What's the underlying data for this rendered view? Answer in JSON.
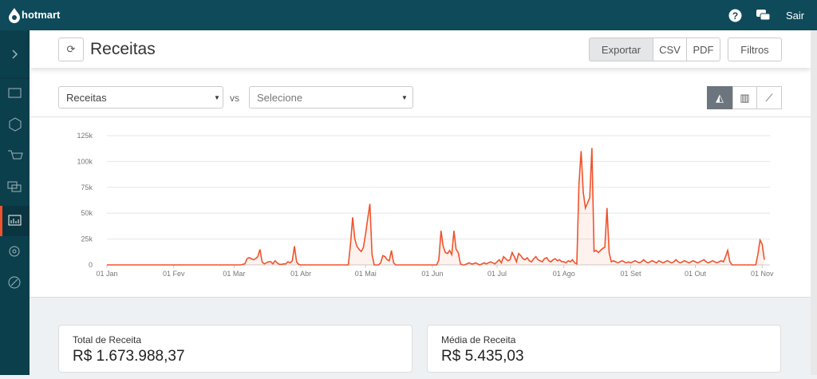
{
  "header": {
    "brand": "hotmart",
    "logout": "Sair"
  },
  "toolbar": {
    "title": "Receitas",
    "buttons": [
      "Exportar",
      "CSV",
      "PDF",
      "Filtros"
    ]
  },
  "selectors": {
    "metric": "Receitas",
    "vs": "vs",
    "compare": "Selecione"
  },
  "chart_data": {
    "type": "line",
    "color": "#f0532b",
    "grid": true,
    "ylim": [
      0,
      125000
    ],
    "yticks": [
      0,
      {
        "value": 25000,
        "label": "25k"
      },
      {
        "value": 50000,
        "label": "50k"
      },
      {
        "value": 75000,
        "label": "75k"
      },
      {
        "value": 100000,
        "label": "100k"
      },
      {
        "value": 125000,
        "label": "125k"
      }
    ],
    "categories": [
      "01 Jan",
      null,
      null,
      null,
      null,
      null,
      null,
      null,
      null,
      null,
      null,
      null,
      null,
      null,
      null,
      null,
      null,
      null,
      null,
      null,
      null,
      null,
      null,
      null,
      null,
      null,
      null,
      null,
      null,
      null,
      null,
      "01 Fev",
      null,
      null,
      null,
      null,
      null,
      null,
      null,
      null,
      null,
      null,
      null,
      null,
      null,
      null,
      null,
      null,
      null,
      null,
      null,
      null,
      null,
      null,
      null,
      null,
      null,
      null,
      null,
      "01 Mar",
      null,
      null,
      null,
      null,
      null,
      null,
      null,
      null,
      null,
      null,
      null,
      null,
      null,
      null,
      null,
      null,
      null,
      null,
      null,
      null,
      null,
      null,
      null,
      null,
      null,
      null,
      null,
      null,
      null,
      null,
      "01 Abr",
      null,
      null,
      null,
      null,
      null,
      null,
      null,
      null,
      null,
      null,
      null,
      null,
      null,
      null,
      null,
      null,
      null,
      null,
      null,
      null,
      null,
      null,
      null,
      null,
      null,
      null,
      null,
      null,
      null,
      "01 Mai",
      null,
      null,
      null,
      null,
      null,
      null,
      null,
      null,
      null,
      null,
      null,
      null,
      null,
      null,
      null,
      null,
      null,
      null,
      null,
      null,
      null,
      null,
      null,
      null,
      null,
      null,
      null,
      null,
      null,
      null,
      "01 Jun",
      null,
      null,
      null,
      null,
      null,
      null,
      null,
      null,
      null,
      null,
      null,
      null,
      null,
      null,
      null,
      null,
      null,
      null,
      null,
      null,
      null,
      null,
      null,
      null,
      null,
      null,
      null,
      null,
      null,
      "01 Jul",
      null,
      null,
      null,
      null,
      null,
      null,
      null,
      null,
      null,
      null,
      null,
      null,
      null,
      null,
      null,
      null,
      null,
      null,
      null,
      null,
      null,
      null,
      null,
      null,
      null,
      null,
      null,
      null,
      null,
      null,
      "01 Ago",
      null,
      null,
      null,
      null,
      null,
      null,
      null,
      null,
      null,
      null,
      null,
      null,
      null,
      null,
      null,
      null,
      null,
      null,
      null,
      null,
      null,
      null,
      null,
      null,
      null,
      null,
      null,
      null,
      null,
      null,
      "01 Set",
      null,
      null,
      null,
      null,
      null,
      null,
      null,
      null,
      null,
      null,
      null,
      null,
      null,
      null,
      null,
      null,
      null,
      null,
      null,
      null,
      null,
      null,
      null,
      null,
      null,
      null,
      null,
      null,
      null,
      "01 Out",
      null,
      null,
      null,
      null,
      null,
      null,
      null,
      null,
      null,
      null,
      null,
      null,
      null,
      null,
      null,
      null,
      null,
      null,
      null,
      null,
      null,
      null,
      null,
      null,
      null,
      null,
      null,
      null,
      null,
      null,
      "01 Nov",
      null
    ],
    "values": [
      0,
      0,
      0,
      0,
      0,
      0,
      0,
      0,
      0,
      0,
      0,
      0,
      0,
      0,
      0,
      0,
      0,
      0,
      0,
      0,
      0,
      0,
      0,
      0,
      0,
      0,
      0,
      0,
      0,
      0,
      0,
      0,
      0,
      0,
      0,
      0,
      0,
      0,
      0,
      0,
      0,
      0,
      0,
      0,
      0,
      0,
      0,
      0,
      0,
      0,
      0,
      0,
      0,
      0,
      0,
      0,
      0,
      0,
      0,
      0,
      0,
      0,
      0,
      500,
      1000,
      6000,
      7000,
      6000,
      5000,
      6000,
      8000,
      15000,
      3000,
      1000,
      2000,
      3000,
      3000,
      1000,
      4000,
      2000,
      500,
      500,
      1000,
      1000,
      3000,
      2000,
      4000,
      18000,
      3000,
      500,
      0,
      0,
      0,
      0,
      0,
      0,
      0,
      0,
      0,
      0,
      0,
      0,
      0,
      0,
      0,
      0,
      0,
      0,
      0,
      0,
      0,
      0,
      0,
      20000,
      46000,
      25000,
      18000,
      15000,
      13000,
      17000,
      30000,
      45000,
      59000,
      10000,
      0,
      0,
      0,
      2000,
      9000,
      8000,
      5000,
      4000,
      14000,
      2000,
      0,
      0,
      0,
      0,
      0,
      0,
      0,
      0,
      0,
      0,
      0,
      0,
      0,
      0,
      0,
      0,
      0,
      0,
      0,
      0,
      5000,
      33000,
      18000,
      12000,
      11000,
      14000,
      10000,
      33000,
      15000,
      12000,
      1000,
      0,
      0,
      1000,
      2000,
      1000,
      1000,
      2000,
      1000,
      0,
      1000,
      2000,
      1000,
      2000,
      3000,
      2000,
      1000,
      3000,
      5000,
      2000,
      8000,
      6000,
      4000,
      5000,
      12000,
      8000,
      3000,
      11000,
      9000,
      6000,
      5000,
      7000,
      4000,
      3000,
      6000,
      8000,
      5000,
      4000,
      3000,
      6000,
      7000,
      4000,
      3000,
      5000,
      6000,
      4000,
      5000,
      3000,
      3000,
      2000,
      4000,
      3000,
      5000,
      2000,
      1000,
      78000,
      110000,
      70000,
      55000,
      60000,
      65000,
      113000,
      13000,
      14000,
      12000,
      14000,
      16000,
      17000,
      55000,
      12000,
      3000,
      4000,
      3000,
      2000,
      3000,
      4000,
      3000,
      2000,
      3000,
      2000,
      3000,
      4000,
      3000,
      2000,
      3000,
      5000,
      3000,
      2000,
      3000,
      4000,
      3000,
      2000,
      4000,
      3000,
      2000,
      3000,
      4000,
      3000,
      2000,
      3000,
      5000,
      3000,
      2000,
      3000,
      4000,
      3000,
      2000,
      3000,
      4000,
      3000,
      2000,
      3000,
      4000,
      5000,
      3000,
      2000,
      3000,
      4000,
      3000,
      2000,
      3000,
      4000,
      3000,
      8000,
      14000,
      3000,
      0,
      0,
      0,
      0,
      0,
      0,
      0,
      0,
      0,
      0,
      0,
      0,
      10000,
      24000,
      20000,
      5000
    ]
  },
  "summary": [
    {
      "label": "Total de Receita",
      "value": "R$ 1.673.988,37"
    },
    {
      "label": "Média de Receita",
      "value": "R$ 5.435,03"
    }
  ]
}
